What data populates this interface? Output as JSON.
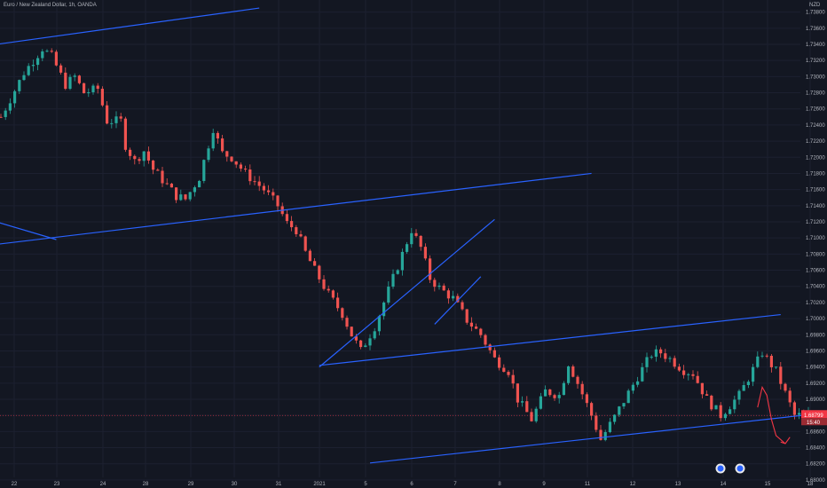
{
  "chart_data": {
    "type": "candlestick",
    "title": "Euro / New Zealand Dollar, 1h, OANDA",
    "currency_badge": "NZD",
    "colors": {
      "background": "#131722",
      "bull": "#26a69a",
      "bear": "#ef5350",
      "trendline": "#2962ff",
      "projection": "#f23645",
      "text": "#b2b5be",
      "price_tag": "#f23645"
    },
    "x_tick_labels": [
      "22",
      "23",
      "24",
      "28",
      "29",
      "30",
      "31",
      "2021",
      "5",
      "6",
      "7",
      "8",
      "9",
      "11",
      "12",
      "13",
      "14",
      "15",
      "18"
    ],
    "y_tick_labels": [
      "1.73800",
      "1.73600",
      "1.73400",
      "1.73200",
      "1.73000",
      "1.72800",
      "1.72600",
      "1.72400",
      "1.72200",
      "1.72000",
      "1.71800",
      "1.71600",
      "1.71400",
      "1.71200",
      "1.71000",
      "1.70800",
      "1.70600",
      "1.70400",
      "1.70200",
      "1.70000",
      "1.69800",
      "1.69600",
      "1.69400",
      "1.69200",
      "1.69000",
      "1.68800",
      "1.68600",
      "1.68400",
      "1.68200",
      "1.68000"
    ],
    "ylim": [
      1.679,
      1.7395
    ],
    "current_price": {
      "value": "1.68799",
      "countdown": "15:40"
    },
    "price_path": [
      [
        0,
        1.725
      ],
      [
        5,
        1.7305
      ],
      [
        9,
        1.7335
      ],
      [
        11,
        1.7325
      ],
      [
        14,
        1.729
      ],
      [
        16,
        1.73
      ],
      [
        18,
        1.728
      ],
      [
        21,
        1.7285
      ],
      [
        23,
        1.7245
      ],
      [
        26,
        1.7245
      ],
      [
        27,
        1.7215
      ],
      [
        29,
        1.7195
      ],
      [
        31,
        1.7208
      ],
      [
        33,
        1.7185
      ],
      [
        35,
        1.7172
      ],
      [
        38,
        1.7152
      ],
      [
        40,
        1.7148
      ],
      [
        43,
        1.7175
      ],
      [
        46,
        1.7236
      ],
      [
        48,
        1.7205
      ],
      [
        50,
        1.72
      ],
      [
        53,
        1.718
      ],
      [
        57,
        1.716
      ],
      [
        60,
        1.714
      ],
      [
        62,
        1.7118
      ],
      [
        64,
        1.711
      ],
      [
        66,
        1.7082
      ],
      [
        68,
        1.706
      ],
      [
        71,
        1.703
      ],
      [
        74,
        1.7006
      ],
      [
        76,
        1.698
      ],
      [
        78,
        1.696
      ],
      [
        81,
        1.699
      ],
      [
        85,
        1.705
      ],
      [
        89,
        1.711
      ],
      [
        91,
        1.7088
      ],
      [
        93,
        1.705
      ],
      [
        95,
        1.7038
      ],
      [
        98,
        1.7025
      ],
      [
        101,
        1.6998
      ],
      [
        104,
        1.698
      ],
      [
        107,
        1.695
      ],
      [
        110,
        1.6935
      ],
      [
        112,
        1.69
      ],
      [
        115,
        1.6875
      ],
      [
        118,
        1.691
      ],
      [
        121,
        1.6905
      ],
      [
        123,
        1.6945
      ],
      [
        125,
        1.692
      ],
      [
        128,
        1.688
      ],
      [
        130,
        1.685
      ],
      [
        133,
        1.6878
      ],
      [
        136,
        1.6908
      ],
      [
        138,
        1.6928
      ],
      [
        141,
        1.6956
      ],
      [
        143,
        1.6958
      ],
      [
        145,
        1.695
      ],
      [
        148,
        1.6936
      ],
      [
        150,
        1.6932
      ],
      [
        153,
        1.69
      ],
      [
        156,
        1.688
      ],
      [
        160,
        1.6905
      ],
      [
        165,
        1.6958
      ],
      [
        168,
        1.6935
      ],
      [
        172,
        1.688
      ],
      [
        175,
        1.688
      ]
    ],
    "trendlines": [
      {
        "x1": -1,
        "y1": 1.734,
        "x2": 56,
        "y2": 1.7385
      },
      {
        "x1": -1,
        "y1": 1.7092,
        "x2": 128,
        "y2": 1.718
      },
      {
        "x1": -1,
        "y1": 1.712,
        "x2": 12,
        "y2": 1.7098
      },
      {
        "x1": 69,
        "y1": 1.694,
        "x2": 107,
        "y2": 1.7123
      },
      {
        "x1": 94,
        "y1": 1.6993,
        "x2": 104,
        "y2": 1.7052
      },
      {
        "x1": 69,
        "y1": 1.6942,
        "x2": 169,
        "y2": 1.7005
      },
      {
        "x1": 80,
        "y1": 1.6821,
        "x2": 180,
        "y2": 1.6884
      }
    ],
    "projection": [
      [
        164,
        1.689
      ],
      [
        165,
        1.6915
      ],
      [
        166,
        1.6905
      ],
      [
        167,
        1.6875
      ],
      [
        168,
        1.6855
      ],
      [
        170,
        1.6845
      ],
      [
        171,
        1.6853
      ],
      [
        169,
        1.6847
      ]
    ],
    "footer_icons": [
      "chart-settings-icon",
      "tradingview-logo-icon"
    ]
  }
}
